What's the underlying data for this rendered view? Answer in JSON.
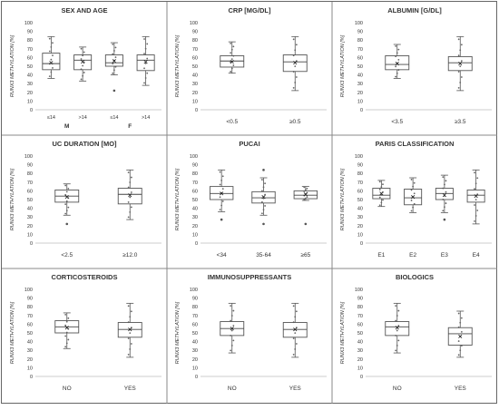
{
  "chart_data": [
    {
      "type": "box",
      "title": "SEX AND AGE",
      "ylabel": "RUNX3 METHYLATION [%]",
      "ylim": [
        0,
        100
      ],
      "yticks": [
        0,
        10,
        20,
        30,
        40,
        50,
        60,
        70,
        80,
        90,
        100
      ],
      "categories": [
        "≤14",
        ">14",
        "≤14",
        ">14"
      ],
      "groups": [
        {
          "label": "M",
          "span": [
            0,
            1
          ]
        },
        {
          "label": "F",
          "span": [
            2,
            3
          ]
        }
      ],
      "boxes": [
        {
          "min": 36,
          "q1": 46,
          "median": 53,
          "q3": 65,
          "max": 84,
          "mean": 54,
          "outliers": []
        },
        {
          "min": 33,
          "q1": 46,
          "median": 57,
          "q3": 63,
          "max": 72,
          "mean": 55,
          "outliers": []
        },
        {
          "min": 40,
          "q1": 50,
          "median": 54,
          "q3": 63,
          "max": 77,
          "mean": 56,
          "outliers": [
            22
          ]
        },
        {
          "min": 28,
          "q1": 45,
          "median": 57,
          "q3": 63,
          "max": 84,
          "mean": 55,
          "outliers": []
        }
      ]
    },
    {
      "type": "box",
      "title": "CRP [MG/DL]",
      "ylabel": "RUNX3 METHYLATION [%]",
      "ylim": [
        0,
        100
      ],
      "yticks": [
        0,
        10,
        20,
        30,
        40,
        50,
        60,
        70,
        80,
        90,
        100
      ],
      "categories": [
        "<0.5",
        "≥0.5"
      ],
      "boxes": [
        {
          "min": 42,
          "q1": 49,
          "median": 56,
          "q3": 62,
          "max": 78,
          "mean": 55,
          "outliers": []
        },
        {
          "min": 22,
          "q1": 44,
          "median": 55,
          "q3": 63,
          "max": 84,
          "mean": 54,
          "outliers": []
        }
      ]
    },
    {
      "type": "box",
      "title": "ALBUMIN [G/DL]",
      "ylabel": "RUNX3 METHYLATION [%]",
      "ylim": [
        0,
        100
      ],
      "yticks": [
        0,
        10,
        20,
        30,
        40,
        50,
        60,
        70,
        80,
        90,
        100
      ],
      "categories": [
        "<3.5",
        "≥3.5"
      ],
      "boxes": [
        {
          "min": 36,
          "q1": 46,
          "median": 52,
          "q3": 62,
          "max": 75,
          "mean": 53,
          "outliers": []
        },
        {
          "min": 22,
          "q1": 45,
          "median": 54,
          "q3": 61,
          "max": 84,
          "mean": 53,
          "outliers": []
        }
      ]
    },
    {
      "type": "box",
      "title": "UC DURATION [MO]",
      "ylabel": "RUNX3 METHYLATION [%]",
      "ylim": [
        0,
        100
      ],
      "yticks": [
        0,
        10,
        20,
        30,
        40,
        50,
        60,
        70,
        80,
        90,
        100
      ],
      "categories": [
        "<2.5",
        "≥12.0"
      ],
      "boxes": [
        {
          "min": 32,
          "q1": 47,
          "median": 54,
          "q3": 61,
          "max": 68,
          "mean": 53,
          "outliers": [
            22
          ]
        },
        {
          "min": 27,
          "q1": 45,
          "median": 56,
          "q3": 63,
          "max": 84,
          "mean": 55,
          "outliers": []
        }
      ]
    },
    {
      "type": "box",
      "title": "PUCAI",
      "ylabel": "RUNX3 METHYLATION [%]",
      "ylim": [
        0,
        100
      ],
      "yticks": [
        0,
        10,
        20,
        30,
        40,
        50,
        60,
        70,
        80,
        90,
        100
      ],
      "categories": [
        "<34",
        "35-64",
        "≥65"
      ],
      "boxes": [
        {
          "min": 36,
          "q1": 50,
          "median": 57,
          "q3": 65,
          "max": 84,
          "mean": 57,
          "outliers": [
            27
          ]
        },
        {
          "min": 32,
          "q1": 46,
          "median": 52,
          "q3": 59,
          "max": 75,
          "mean": 53,
          "outliers": [
            22,
            84
          ]
        },
        {
          "min": 49,
          "q1": 51,
          "median": 55,
          "q3": 60,
          "max": 65,
          "mean": 56,
          "outliers": [
            22
          ]
        }
      ]
    },
    {
      "type": "box",
      "title": "PARIS CLASSIFICATION",
      "ylabel": "RUNX3 METHYLATION [%]",
      "ylim": [
        0,
        100
      ],
      "yticks": [
        0,
        10,
        20,
        30,
        40,
        50,
        60,
        70,
        80,
        90,
        100
      ],
      "categories": [
        "E1",
        "E2",
        "E3",
        "E4"
      ],
      "boxes": [
        {
          "min": 42,
          "q1": 51,
          "median": 55,
          "q3": 63,
          "max": 72,
          "mean": 57,
          "outliers": []
        },
        {
          "min": 35,
          "q1": 44,
          "median": 52,
          "q3": 62,
          "max": 75,
          "mean": 53,
          "outliers": []
        },
        {
          "min": 35,
          "q1": 50,
          "median": 57,
          "q3": 63,
          "max": 78,
          "mean": 55,
          "outliers": [
            27
          ]
        },
        {
          "min": 22,
          "q1": 47,
          "median": 55,
          "q3": 61,
          "max": 84,
          "mean": 54,
          "outliers": []
        }
      ]
    },
    {
      "type": "box",
      "title": "CORTICOSTEROIDS",
      "ylabel": "RUNX3 METHYLATION [%]",
      "ylim": [
        0,
        100
      ],
      "yticks": [
        0,
        10,
        20,
        30,
        40,
        50,
        60,
        70,
        80,
        90,
        100
      ],
      "categories": [
        "NO",
        "YES"
      ],
      "boxes": [
        {
          "min": 32,
          "q1": 50,
          "median": 57,
          "q3": 64,
          "max": 73,
          "mean": 56,
          "outliers": []
        },
        {
          "min": 22,
          "q1": 45,
          "median": 54,
          "q3": 62,
          "max": 84,
          "mean": 54,
          "outliers": []
        }
      ]
    },
    {
      "type": "box",
      "title": "IMMUNOSUPPRESSANTS",
      "ylabel": "RUNX3 METHYLATION [%]",
      "ylim": [
        0,
        100
      ],
      "yticks": [
        0,
        10,
        20,
        30,
        40,
        50,
        60,
        70,
        80,
        90,
        100
      ],
      "categories": [
        "NO",
        "YES"
      ],
      "boxes": [
        {
          "min": 27,
          "q1": 47,
          "median": 55,
          "q3": 63,
          "max": 84,
          "mean": 55,
          "outliers": []
        },
        {
          "min": 22,
          "q1": 45,
          "median": 54,
          "q3": 62,
          "max": 84,
          "mean": 54,
          "outliers": []
        }
      ]
    },
    {
      "type": "box",
      "title": "BIOLOGICS",
      "ylabel": "RUNX3 METHYLATION [%]",
      "ylim": [
        0,
        100
      ],
      "yticks": [
        0,
        10,
        20,
        30,
        40,
        50,
        60,
        70,
        80,
        90,
        100
      ],
      "categories": [
        "NO",
        "YES"
      ],
      "boxes": [
        {
          "min": 27,
          "q1": 47,
          "median": 57,
          "q3": 63,
          "max": 84,
          "mean": 56,
          "outliers": []
        },
        {
          "min": 22,
          "q1": 36,
          "median": 49,
          "q3": 56,
          "max": 75,
          "mean": 46,
          "outliers": []
        }
      ]
    }
  ]
}
